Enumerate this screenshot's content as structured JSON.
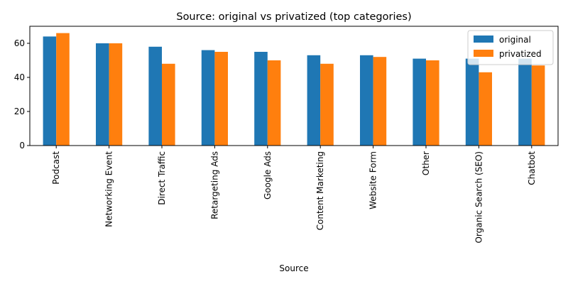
{
  "chart_data": {
    "type": "bar",
    "title": "Source: original vs privatized (top categories)",
    "xlabel": "Source",
    "ylabel": "",
    "ylim": [
      0,
      70
    ],
    "yticks": [
      0,
      20,
      40,
      60
    ],
    "grid": false,
    "legend_position": "top-right",
    "categories": [
      "Podcast",
      "Networking Event",
      "Direct Traffic",
      "Retargeting Ads",
      "Google Ads",
      "Content Marketing",
      "Website Form",
      "Other",
      "Organic Search (SEO)",
      "Chatbot"
    ],
    "series": [
      {
        "name": "original",
        "color": "#1f77b4",
        "values": [
          64,
          60,
          58,
          56,
          55,
          53,
          53,
          51,
          51,
          51
        ]
      },
      {
        "name": "privatized",
        "color": "#ff7f0e",
        "values": [
          66,
          60,
          48,
          55,
          50,
          48,
          52,
          50,
          43,
          47
        ]
      }
    ]
  }
}
